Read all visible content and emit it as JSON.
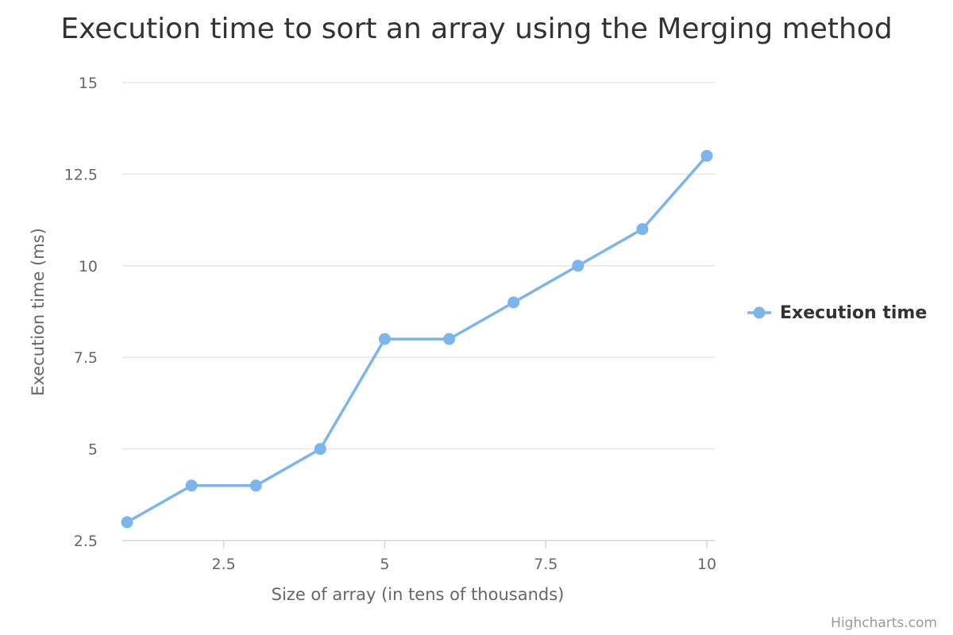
{
  "chart_data": {
    "type": "line",
    "title": "Execution time to sort an array using the Merging method",
    "xlabel": "Size of array (in tens of thousands)",
    "ylabel": "Execution time (ms)",
    "xlim": [
      1,
      10
    ],
    "ylim": [
      2.5,
      15
    ],
    "x_ticks": [
      "2.5",
      "5",
      "7.5",
      "10"
    ],
    "y_ticks": [
      "2.5",
      "5",
      "7.5",
      "10",
      "12.5",
      "15"
    ],
    "grid": true,
    "legend_position": "right",
    "series": [
      {
        "name": "Execution time",
        "color": "#7cb5ec",
        "x": [
          1,
          2,
          3,
          4,
          5,
          6,
          7,
          8,
          9,
          10
        ],
        "values": [
          3,
          4,
          4,
          5,
          8,
          8,
          9,
          10,
          11,
          13
        ]
      }
    ]
  },
  "credits": "Highcharts.com"
}
